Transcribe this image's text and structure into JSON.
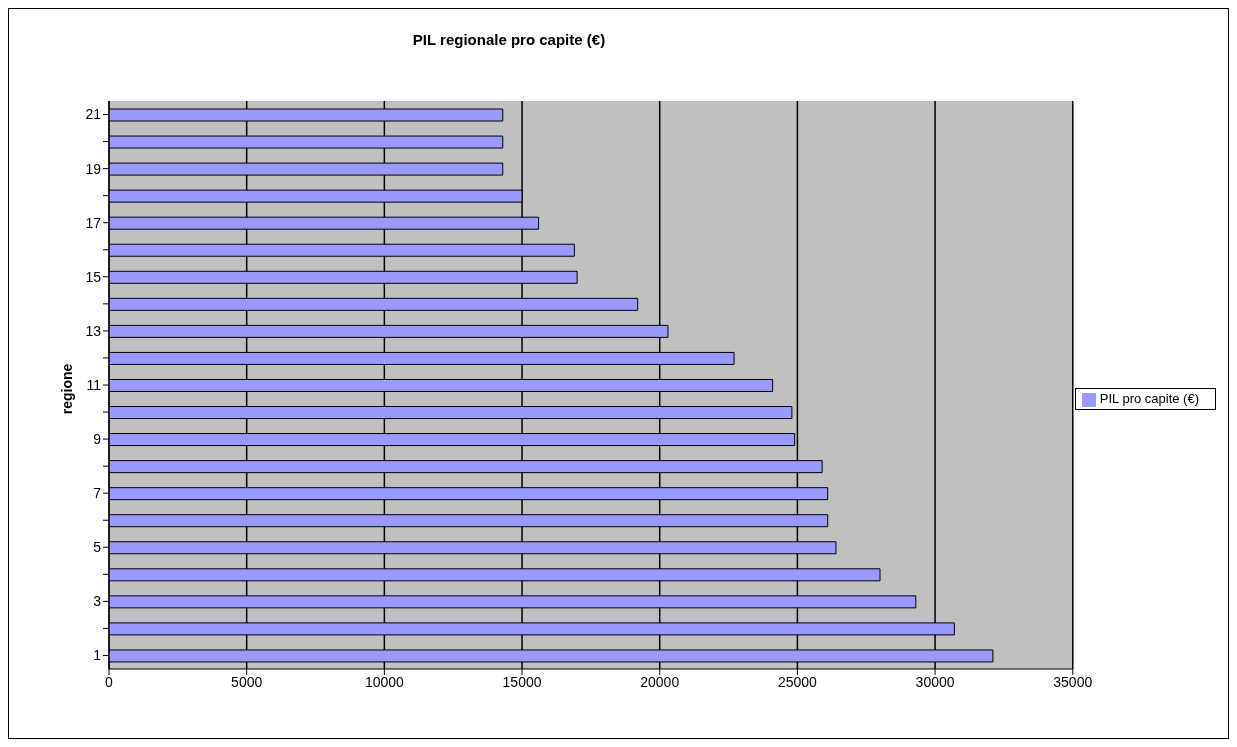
{
  "chart_data": {
    "type": "bar",
    "orientation": "horizontal",
    "title": "PIL regionale pro capite (€)",
    "ylabel": "regione",
    "categories": [
      "21",
      null,
      "19",
      null,
      "17",
      null,
      "15",
      null,
      "13",
      null,
      "11",
      null,
      "9",
      null,
      "7",
      null,
      "5",
      null,
      "3",
      null,
      "1"
    ],
    "series": [
      {
        "name": "PIL pro capite (€)",
        "color": "#9999ff",
        "values": [
          14300,
          14300,
          14300,
          15000,
          15600,
          16900,
          17000,
          19200,
          20300,
          22700,
          24100,
          24800,
          24900,
          25900,
          26100,
          26100,
          26400,
          28000,
          29300,
          30700,
          32100
        ]
      }
    ],
    "xlim": [
      0,
      35000
    ],
    "xticks": [
      0,
      5000,
      10000,
      15000,
      20000,
      25000,
      30000,
      35000
    ],
    "grid": "x",
    "legend": "right"
  }
}
